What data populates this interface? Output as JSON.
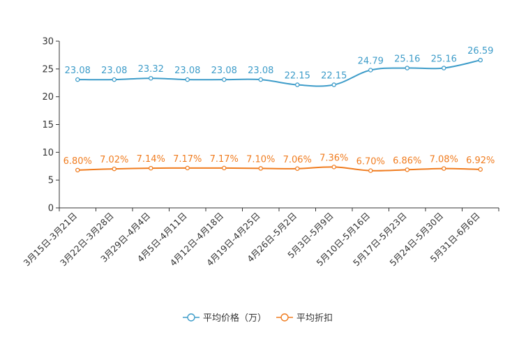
{
  "chart_data": {
    "type": "line",
    "title": "",
    "xlabel": "",
    "ylabel": "",
    "ylim": [
      0,
      30
    ],
    "yticks": [
      0,
      5,
      10,
      15,
      20,
      25,
      30
    ],
    "grid": false,
    "legend_position": "bottom-center",
    "categories": [
      "3月15日-3月21日",
      "3月22日-3月28日",
      "3月29日-4月4日",
      "4月5日-4月11日",
      "4月12日-4月18日",
      "4月19日-4月25日",
      "4月26日-5月2日",
      "5月3日-5月9日",
      "5月10日-5月16日",
      "5月17日-5月23日",
      "5月24日-5月30日",
      "5月31日-6月6日"
    ],
    "series": [
      {
        "name": "平均价格（万）",
        "color": "#3d9cc9",
        "values": [
          23.08,
          23.08,
          23.32,
          23.08,
          23.08,
          23.08,
          22.15,
          22.15,
          24.79,
          25.16,
          25.16,
          26.59
        ],
        "labels": [
          "23.08",
          "23.08",
          "23.32",
          "23.08",
          "23.08",
          "23.08",
          "22.15",
          "22.15",
          "24.79",
          "25.16",
          "25.16",
          "26.59"
        ]
      },
      {
        "name": "平均折扣",
        "color": "#f07c1f",
        "values": [
          6.8,
          7.02,
          7.14,
          7.17,
          7.17,
          7.1,
          7.06,
          7.36,
          6.7,
          6.86,
          7.08,
          6.92
        ],
        "labels": [
          "6.80%",
          "7.02%",
          "7.14%",
          "7.17%",
          "7.17%",
          "7.10%",
          "7.06%",
          "7.36%",
          "6.70%",
          "6.86%",
          "7.08%",
          "6.92%"
        ]
      }
    ]
  }
}
